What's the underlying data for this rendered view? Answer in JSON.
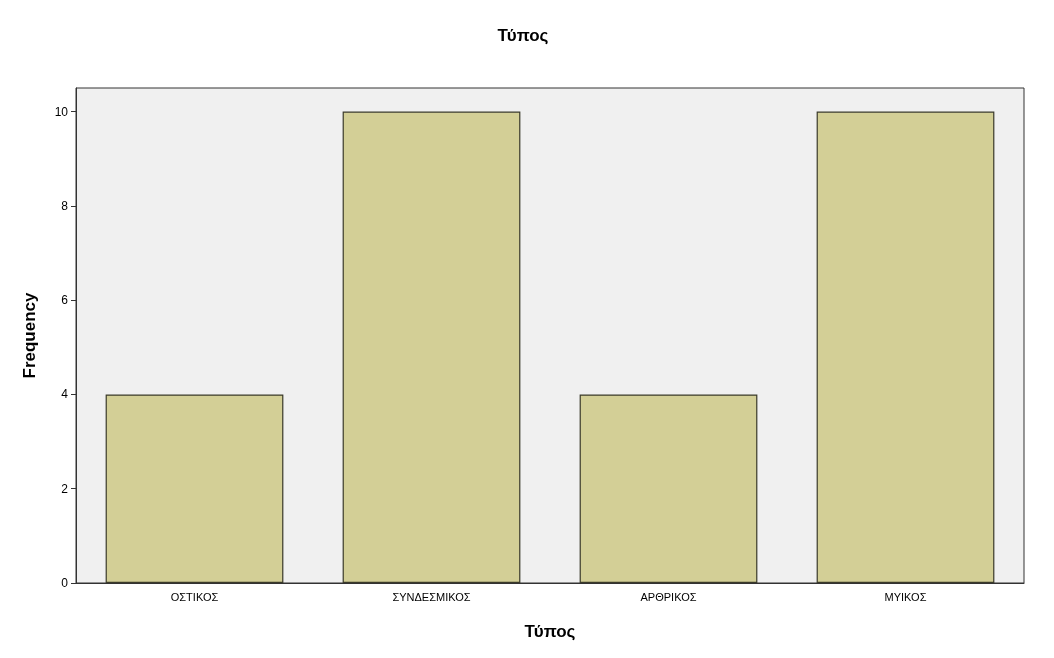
{
  "chart_data": {
    "type": "bar",
    "title": "Τύπος",
    "xlabel": "Τύπος",
    "ylabel": "Frequency",
    "categories": [
      "ΟΣΤΙΚΟΣ",
      "ΣΥΝΔΕΣΜΙΚΟΣ",
      "ΑΡΘΡΙΚΟΣ",
      "ΜΥΙΚΟΣ"
    ],
    "values": [
      4,
      10,
      4,
      10
    ],
    "color": "#d3cf96",
    "ylim": [
      0,
      10.5
    ],
    "yticks": [
      0,
      2,
      4,
      6,
      8,
      10
    ],
    "grid": false
  }
}
